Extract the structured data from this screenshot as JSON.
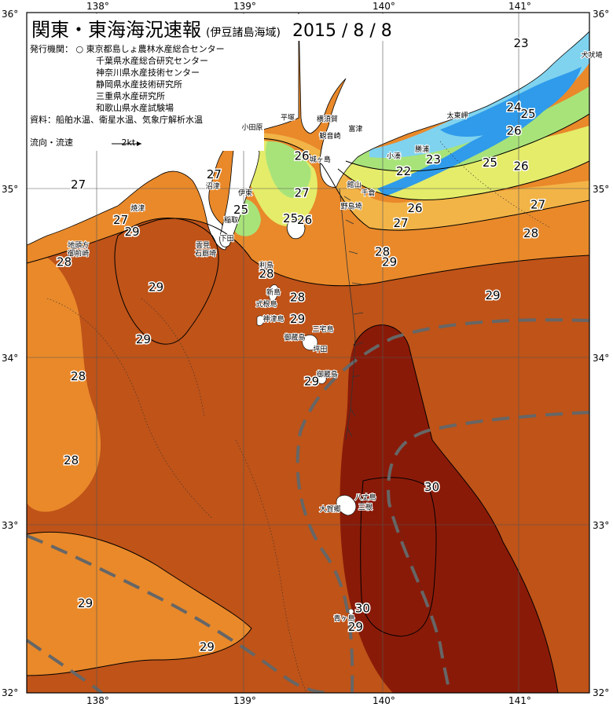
{
  "title": {
    "main": "関東・東海海況速報",
    "sub": "(伊豆諸島海域)",
    "date": "2015 / 8 / 8"
  },
  "info": {
    "agency_label": "発行機関：",
    "agencies": [
      "東京都島しょ農林水産総合センター",
      "千葉県水産総合研究センター",
      "神奈川県水産技術センター",
      "静岡県水産技術研究所",
      "三重県水産研究所",
      "和歌山県水産試験場"
    ],
    "source": "資料：船舶水温、衛星水温、気象庁解析水温",
    "flow_legend": "流向・流速",
    "flow_unit": "2kt"
  },
  "axes": {
    "lon_labels": [
      "138°",
      "139°",
      "140°",
      "141°"
    ],
    "lat_labels": [
      "36°",
      "35°",
      "34°",
      "33°",
      "32°"
    ],
    "lon_range": [
      137.5,
      141.75
    ],
    "lat_range": [
      32,
      36
    ]
  },
  "colors": {
    "t23": "#2f9bea",
    "t24": "#7fd3ef",
    "t25": "#a8e37a",
    "t26": "#e4ec6a",
    "t27": "#f2b447",
    "t28": "#e9892a",
    "t29": "#bf5318",
    "t30": "#8a1a08",
    "land": "#ffffff",
    "stream": "#666666"
  },
  "isotherm_labels": [
    {
      "text": "23",
      "lon": 141.0,
      "lat": 35.84
    },
    {
      "text": "24",
      "lon": 140.95,
      "lat": 35.46
    },
    {
      "text": "25",
      "lon": 141.05,
      "lat": 35.42
    },
    {
      "text": "26",
      "lon": 140.95,
      "lat": 35.32
    },
    {
      "text": "23",
      "lon": 140.38,
      "lat": 35.15
    },
    {
      "text": "22",
      "lon": 140.17,
      "lat": 35.08
    },
    {
      "text": "25",
      "lon": 140.78,
      "lat": 35.13
    },
    {
      "text": "26",
      "lon": 141.0,
      "lat": 35.11
    },
    {
      "text": "26",
      "lon": 140.25,
      "lat": 34.86
    },
    {
      "text": "27",
      "lon": 141.12,
      "lat": 34.88
    },
    {
      "text": "27",
      "lon": 140.15,
      "lat": 34.77
    },
    {
      "text": "28",
      "lon": 141.07,
      "lat": 34.71
    },
    {
      "text": "28",
      "lon": 140.02,
      "lat": 34.6
    },
    {
      "text": "29",
      "lon": 140.07,
      "lat": 34.54
    },
    {
      "text": "29",
      "lon": 140.8,
      "lat": 34.34
    },
    {
      "text": "26",
      "lon": 139.45,
      "lat": 35.17
    },
    {
      "text": "27",
      "lon": 138.83,
      "lat": 35.06
    },
    {
      "text": "27",
      "lon": 137.87,
      "lat": 35.0
    },
    {
      "text": "27",
      "lon": 139.45,
      "lat": 34.95
    },
    {
      "text": "25",
      "lon": 139.02,
      "lat": 34.85
    },
    {
      "text": "25",
      "lon": 139.37,
      "lat": 34.8
    },
    {
      "text": "26",
      "lon": 139.47,
      "lat": 34.79
    },
    {
      "text": "27",
      "lon": 138.17,
      "lat": 34.79
    },
    {
      "text": "29",
      "lon": 138.25,
      "lat": 34.72
    },
    {
      "text": "28",
      "lon": 137.77,
      "lat": 34.54
    },
    {
      "text": "28",
      "lon": 139.2,
      "lat": 34.47
    },
    {
      "text": "29",
      "lon": 138.42,
      "lat": 34.39
    },
    {
      "text": "28",
      "lon": 139.42,
      "lat": 34.33
    },
    {
      "text": "29",
      "lon": 139.42,
      "lat": 34.2
    },
    {
      "text": "29",
      "lon": 138.33,
      "lat": 34.08
    },
    {
      "text": "28",
      "lon": 137.87,
      "lat": 33.86
    },
    {
      "text": "29",
      "lon": 139.52,
      "lat": 33.83
    },
    {
      "text": "28",
      "lon": 137.82,
      "lat": 33.36
    },
    {
      "text": "30",
      "lon": 140.37,
      "lat": 33.2
    },
    {
      "text": "29",
      "lon": 137.92,
      "lat": 32.51
    },
    {
      "text": "30",
      "lon": 139.88,
      "lat": 32.48
    },
    {
      "text": "29",
      "lon": 139.83,
      "lat": 32.37
    },
    {
      "text": "29",
      "lon": 138.78,
      "lat": 32.25
    }
  ],
  "place_labels": [
    {
      "text": "犬吠埼",
      "lon": 141.5,
      "lat": 35.78
    },
    {
      "text": "太東岬",
      "lon": 140.55,
      "lat": 35.42
    },
    {
      "text": "勝浦",
      "lon": 140.3,
      "lat": 35.22
    },
    {
      "text": "小湊",
      "lon": 140.1,
      "lat": 35.18
    },
    {
      "text": "館山",
      "lon": 139.82,
      "lat": 35.01
    },
    {
      "text": "千倉",
      "lon": 139.92,
      "lat": 34.96
    },
    {
      "text": "野島埼",
      "lon": 139.8,
      "lat": 34.88
    },
    {
      "text": "平塚",
      "lon": 139.35,
      "lat": 35.41
    },
    {
      "text": "横須賀",
      "lon": 139.63,
      "lat": 35.4
    },
    {
      "text": "富津",
      "lon": 139.83,
      "lat": 35.34
    },
    {
      "text": "観音崎",
      "lon": 139.65,
      "lat": 35.3
    },
    {
      "text": "城ヶ島",
      "lon": 139.58,
      "lat": 35.16
    },
    {
      "text": "小田原",
      "lon": 139.1,
      "lat": 35.35
    },
    {
      "text": "沼津",
      "lon": 138.82,
      "lat": 35.0
    },
    {
      "text": "焼津",
      "lon": 138.29,
      "lat": 34.87
    },
    {
      "text": "伊東",
      "lon": 139.05,
      "lat": 34.96
    },
    {
      "text": "稲取",
      "lon": 138.95,
      "lat": 34.8
    },
    {
      "text": "下田",
      "lon": 138.92,
      "lat": 34.69
    },
    {
      "text": "雲見",
      "lon": 138.75,
      "lat": 34.65
    },
    {
      "text": "石廊埼",
      "lon": 138.77,
      "lat": 34.6
    },
    {
      "text": "地頭方",
      "lon": 137.87,
      "lat": 34.65
    },
    {
      "text": "御前崎",
      "lon": 137.87,
      "lat": 34.6
    },
    {
      "text": "利島",
      "lon": 139.2,
      "lat": 34.53
    },
    {
      "text": "新島",
      "lon": 139.25,
      "lat": 34.37
    },
    {
      "text": "式根島",
      "lon": 139.2,
      "lat": 34.3
    },
    {
      "text": "神津島",
      "lon": 139.25,
      "lat": 34.21
    },
    {
      "text": "三宅島",
      "lon": 139.6,
      "lat": 34.15
    },
    {
      "text": "御蔵島",
      "lon": 139.4,
      "lat": 34.1
    },
    {
      "text": "坪田",
      "lon": 139.58,
      "lat": 34.03
    },
    {
      "text": "御蔵島",
      "lon": 139.63,
      "lat": 33.88
    },
    {
      "text": "八丈島",
      "lon": 139.9,
      "lat": 33.15
    },
    {
      "text": "大賀郷",
      "lon": 139.65,
      "lat": 33.08
    },
    {
      "text": "三根",
      "lon": 139.9,
      "lat": 33.09
    },
    {
      "text": "青ヶ島",
      "lon": 139.75,
      "lat": 32.43
    }
  ]
}
